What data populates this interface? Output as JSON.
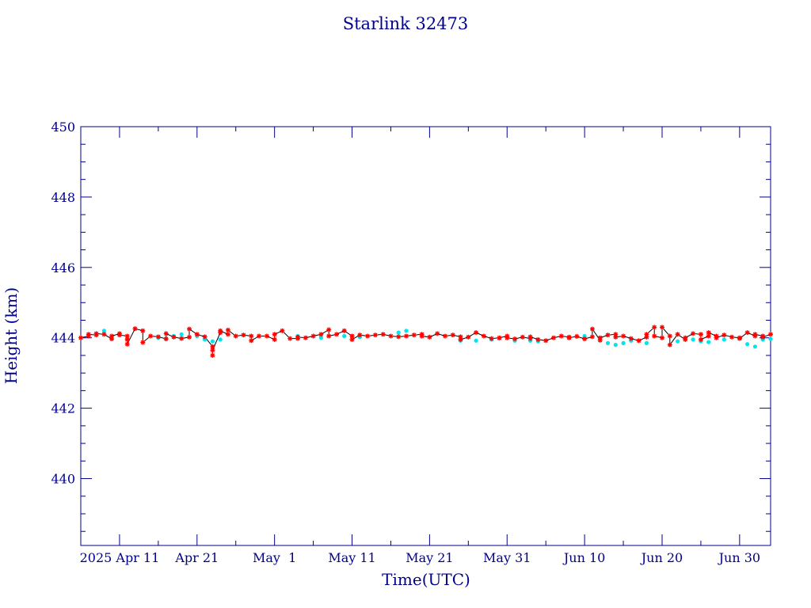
{
  "chart_data": {
    "type": "line",
    "title": "Starlink 32473",
    "xlabel": "Time(UTC)",
    "ylabel": "Height (km)",
    "xlim": [
      "2025-04-06",
      "2025-07-04"
    ],
    "ylim": [
      438.1,
      450
    ],
    "x_ticks": [
      {
        "date": "2025-04-11",
        "label": "2025 Apr 11"
      },
      {
        "date": "2025-04-21",
        "label": "Apr 21"
      },
      {
        "date": "2025-05-01",
        "label": "May  1"
      },
      {
        "date": "2025-05-11",
        "label": "May 11"
      },
      {
        "date": "2025-05-21",
        "label": "May 21"
      },
      {
        "date": "2025-05-31",
        "label": "May 31"
      },
      {
        "date": "2025-06-10",
        "label": "Jun 10"
      },
      {
        "date": "2025-06-20",
        "label": "Jun 20"
      },
      {
        "date": "2025-06-30",
        "label": "Jun 30"
      }
    ],
    "y_ticks": [
      440,
      442,
      444,
      446,
      448,
      450
    ],
    "colors": {
      "axes": "#00008b",
      "line": "#000000",
      "series_a": "#ff0000",
      "series_b": "#00e5ee"
    },
    "series": [
      {
        "marker": "asterisk",
        "color": "#ff0000",
        "connected": true,
        "points": [
          [
            "2025-04-06",
            444.0
          ],
          [
            "2025-04-07",
            444.05
          ],
          [
            "2025-04-07",
            444.1
          ],
          [
            "2025-04-08",
            444.08
          ],
          [
            "2025-04-08",
            444.12
          ],
          [
            "2025-04-09",
            444.1
          ],
          [
            "2025-04-10",
            443.97
          ],
          [
            "2025-04-10",
            444.05
          ],
          [
            "2025-04-11",
            444.12
          ],
          [
            "2025-04-11",
            444.08
          ],
          [
            "2025-04-12",
            444.05
          ],
          [
            "2025-04-12",
            443.95
          ],
          [
            "2025-04-12",
            443.82
          ],
          [
            "2025-04-13",
            444.26
          ],
          [
            "2025-04-14",
            444.2
          ],
          [
            "2025-04-14",
            443.87
          ],
          [
            "2025-04-15",
            444.05
          ],
          [
            "2025-04-16",
            444.03
          ],
          [
            "2025-04-17",
            443.97
          ],
          [
            "2025-04-17",
            444.12
          ],
          [
            "2025-04-18",
            444.02
          ],
          [
            "2025-04-19",
            443.98
          ],
          [
            "2025-04-20",
            444.02
          ],
          [
            "2025-04-20",
            444.25
          ],
          [
            "2025-04-21",
            444.1
          ],
          [
            "2025-04-22",
            444.03
          ],
          [
            "2025-04-23",
            443.75
          ],
          [
            "2025-04-23",
            443.5
          ],
          [
            "2025-04-23",
            443.65
          ],
          [
            "2025-04-24",
            444.15
          ],
          [
            "2025-04-24",
            444.2
          ],
          [
            "2025-04-25",
            444.1
          ],
          [
            "2025-04-25",
            444.22
          ],
          [
            "2025-04-26",
            444.05
          ],
          [
            "2025-04-27",
            444.08
          ],
          [
            "2025-04-28",
            444.05
          ],
          [
            "2025-04-28",
            443.92
          ],
          [
            "2025-04-29",
            444.05
          ],
          [
            "2025-04-30",
            444.05
          ],
          [
            "2025-05-01",
            443.95
          ],
          [
            "2025-05-01",
            444.1
          ],
          [
            "2025-05-02",
            444.2
          ],
          [
            "2025-05-03",
            443.98
          ],
          [
            "2025-05-04",
            443.98
          ],
          [
            "2025-05-04",
            444.02
          ],
          [
            "2025-05-05",
            444.0
          ],
          [
            "2025-05-06",
            444.05
          ],
          [
            "2025-05-07",
            444.1
          ],
          [
            "2025-05-08",
            444.23
          ],
          [
            "2025-05-08",
            444.05
          ],
          [
            "2025-05-09",
            444.1
          ],
          [
            "2025-05-10",
            444.2
          ],
          [
            "2025-05-11",
            444.05
          ],
          [
            "2025-05-11",
            443.95
          ],
          [
            "2025-05-12",
            444.08
          ],
          [
            "2025-05-13",
            444.05
          ],
          [
            "2025-05-14",
            444.08
          ],
          [
            "2025-05-15",
            444.1
          ],
          [
            "2025-05-16",
            444.05
          ],
          [
            "2025-05-17",
            444.03
          ],
          [
            "2025-05-18",
            444.05
          ],
          [
            "2025-05-19",
            444.08
          ],
          [
            "2025-05-20",
            444.1
          ],
          [
            "2025-05-20",
            444.05
          ],
          [
            "2025-05-21",
            444.02
          ],
          [
            "2025-05-22",
            444.12
          ],
          [
            "2025-05-23",
            444.05
          ],
          [
            "2025-05-24",
            444.08
          ],
          [
            "2025-05-25",
            444.03
          ],
          [
            "2025-05-25",
            443.95
          ],
          [
            "2025-05-26",
            444.02
          ],
          [
            "2025-05-27",
            444.15
          ],
          [
            "2025-05-28",
            444.05
          ],
          [
            "2025-05-29",
            443.98
          ],
          [
            "2025-05-30",
            444.0
          ],
          [
            "2025-05-31",
            444.05
          ],
          [
            "2025-05-31",
            444.0
          ],
          [
            "2025-06-01",
            443.97
          ],
          [
            "2025-06-02",
            444.02
          ],
          [
            "2025-06-03",
            443.98
          ],
          [
            "2025-06-03",
            444.03
          ],
          [
            "2025-06-04",
            443.95
          ],
          [
            "2025-06-05",
            443.92
          ],
          [
            "2025-06-06",
            444.0
          ],
          [
            "2025-06-07",
            444.05
          ],
          [
            "2025-06-08",
            444.02
          ],
          [
            "2025-06-08",
            444.0
          ],
          [
            "2025-06-09",
            444.04
          ],
          [
            "2025-06-10",
            443.97
          ],
          [
            "2025-06-11",
            444.03
          ],
          [
            "2025-06-11",
            444.25
          ],
          [
            "2025-06-12",
            443.93
          ],
          [
            "2025-06-12",
            444.0
          ],
          [
            "2025-06-13",
            444.08
          ],
          [
            "2025-06-14",
            444.1
          ],
          [
            "2025-06-14",
            444.02
          ],
          [
            "2025-06-15",
            444.05
          ],
          [
            "2025-06-16",
            443.98
          ],
          [
            "2025-06-17",
            443.92
          ],
          [
            "2025-06-18",
            444.02
          ],
          [
            "2025-06-18",
            444.1
          ],
          [
            "2025-06-19",
            444.3
          ],
          [
            "2025-06-19",
            444.05
          ],
          [
            "2025-06-20",
            444.0
          ],
          [
            "2025-06-20",
            444.3
          ],
          [
            "2025-06-21",
            444.05
          ],
          [
            "2025-06-21",
            443.8
          ],
          [
            "2025-06-22",
            444.1
          ],
          [
            "2025-06-23",
            443.95
          ],
          [
            "2025-06-23",
            444.0
          ],
          [
            "2025-06-24",
            444.12
          ],
          [
            "2025-06-25",
            444.1
          ],
          [
            "2025-06-25",
            443.95
          ],
          [
            "2025-06-26",
            444.05
          ],
          [
            "2025-06-26",
            444.15
          ],
          [
            "2025-06-27",
            444.05
          ],
          [
            "2025-06-27",
            444.0
          ],
          [
            "2025-06-28",
            444.08
          ],
          [
            "2025-06-29",
            444.02
          ],
          [
            "2025-06-30",
            444.0
          ],
          [
            "2025-06-30",
            443.98
          ],
          [
            "2025-07-01",
            444.15
          ],
          [
            "2025-07-02",
            444.05
          ],
          [
            "2025-07-02",
            444.1
          ],
          [
            "2025-07-03",
            444.05
          ],
          [
            "2025-07-03",
            444.02
          ],
          [
            "2025-07-04",
            444.1
          ]
        ]
      },
      {
        "marker": "dot",
        "color": "#00e5ee",
        "connected": false,
        "points": [
          [
            "2025-04-09",
            444.2
          ],
          [
            "2025-04-12",
            443.97
          ],
          [
            "2025-04-16",
            444.0
          ],
          [
            "2025-04-17",
            443.98
          ],
          [
            "2025-04-18",
            444.05
          ],
          [
            "2025-04-19",
            444.1
          ],
          [
            "2025-04-21",
            444.05
          ],
          [
            "2025-04-22",
            443.95
          ],
          [
            "2025-04-23",
            443.9
          ],
          [
            "2025-04-24",
            443.95
          ],
          [
            "2025-05-04",
            444.05
          ],
          [
            "2025-05-07",
            444.0
          ],
          [
            "2025-05-10",
            444.05
          ],
          [
            "2025-05-11",
            444.05
          ],
          [
            "2025-05-12",
            444.02
          ],
          [
            "2025-05-17",
            444.15
          ],
          [
            "2025-05-18",
            444.2
          ],
          [
            "2025-05-25",
            443.92
          ],
          [
            "2025-05-27",
            443.92
          ],
          [
            "2025-05-29",
            443.95
          ],
          [
            "2025-05-30",
            443.98
          ],
          [
            "2025-06-01",
            443.92
          ],
          [
            "2025-06-03",
            443.92
          ],
          [
            "2025-06-04",
            443.9
          ],
          [
            "2025-06-10",
            444.05
          ],
          [
            "2025-06-13",
            443.85
          ],
          [
            "2025-06-14",
            443.8
          ],
          [
            "2025-06-15",
            443.85
          ],
          [
            "2025-06-16",
            443.92
          ],
          [
            "2025-06-18",
            443.85
          ],
          [
            "2025-06-22",
            443.9
          ],
          [
            "2025-06-24",
            443.95
          ],
          [
            "2025-06-25",
            443.9
          ],
          [
            "2025-06-26",
            443.88
          ],
          [
            "2025-06-28",
            443.95
          ],
          [
            "2025-07-01",
            443.82
          ],
          [
            "2025-07-02",
            443.75
          ],
          [
            "2025-07-03",
            443.95
          ],
          [
            "2025-07-04",
            443.97
          ]
        ]
      }
    ]
  }
}
